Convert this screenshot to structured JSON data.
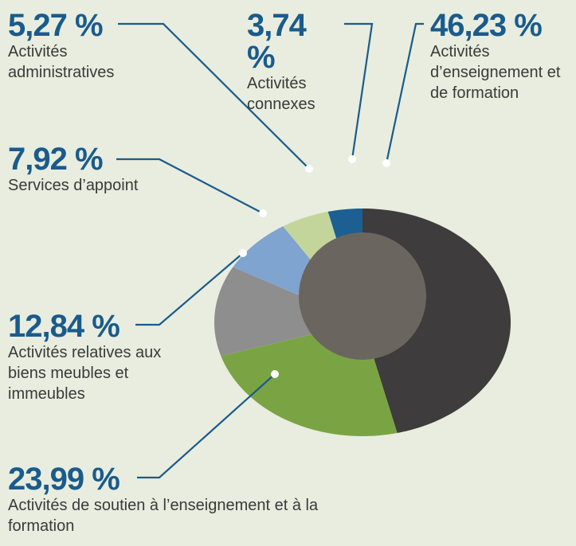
{
  "chart_data": {
    "type": "pie",
    "categories": [
      "Activités d’enseignement et de formation",
      "Activités de soutien à l’enseignement et à la formation",
      "Activités relatives aux biens meubles et immeubles",
      "Services d’appoint",
      "Activités administratives",
      "Activités connexes"
    ],
    "values": [
      46.23,
      23.99,
      12.84,
      7.92,
      5.27,
      3.74
    ],
    "value_labels": [
      "46,23 %",
      "23,99 %",
      "12,84 %",
      "7,92 %",
      "5,27 %",
      "3,74 %"
    ],
    "colors": [
      "#3e3c3c",
      "#7aa443",
      "#8e8e8e",
      "#7fa4d0",
      "#c3d59b",
      "#1c5f92"
    ]
  }
}
